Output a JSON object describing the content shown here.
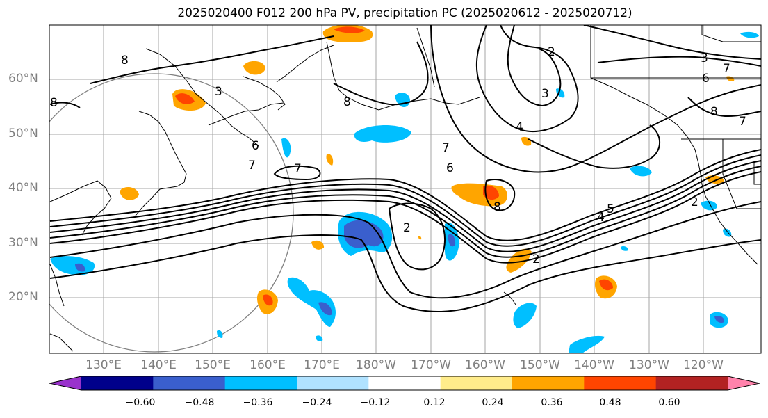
{
  "title": "2025020400 F012 200 hPa PV, precipitation PC (2025020612 - 2025020712)",
  "lat_labels": [
    "60°N",
    "50°N",
    "40°N",
    "30°N",
    "20°N"
  ],
  "lon_labels": [
    "130°E",
    "140°E",
    "150°E",
    "160°E",
    "170°E",
    "180°W",
    "170°W",
    "160°W",
    "150°W",
    "140°W",
    "130°W",
    "120°W"
  ],
  "contour_labels": [
    "8",
    "8",
    "8",
    "7",
    "7",
    "6",
    "6",
    "2",
    "3",
    "3",
    "4",
    "8",
    "7",
    "2",
    "3",
    "8",
    "7",
    "2",
    "2",
    "5",
    "4",
    "6",
    "7"
  ],
  "colorbar": {
    "ticks": [
      "−0.60",
      "−0.48",
      "−0.36",
      "−0.24",
      "−0.12",
      "0.12",
      "0.24",
      "0.36",
      "0.48",
      "0.60"
    ],
    "colors": [
      "#9932cc",
      "#00008b",
      "#3a5fcd",
      "#00bfff",
      "#b0e2ff",
      "#ffffff",
      "#ffec8b",
      "#ffa500",
      "#ff4500",
      "#b22222",
      "#ff82ab"
    ]
  }
}
